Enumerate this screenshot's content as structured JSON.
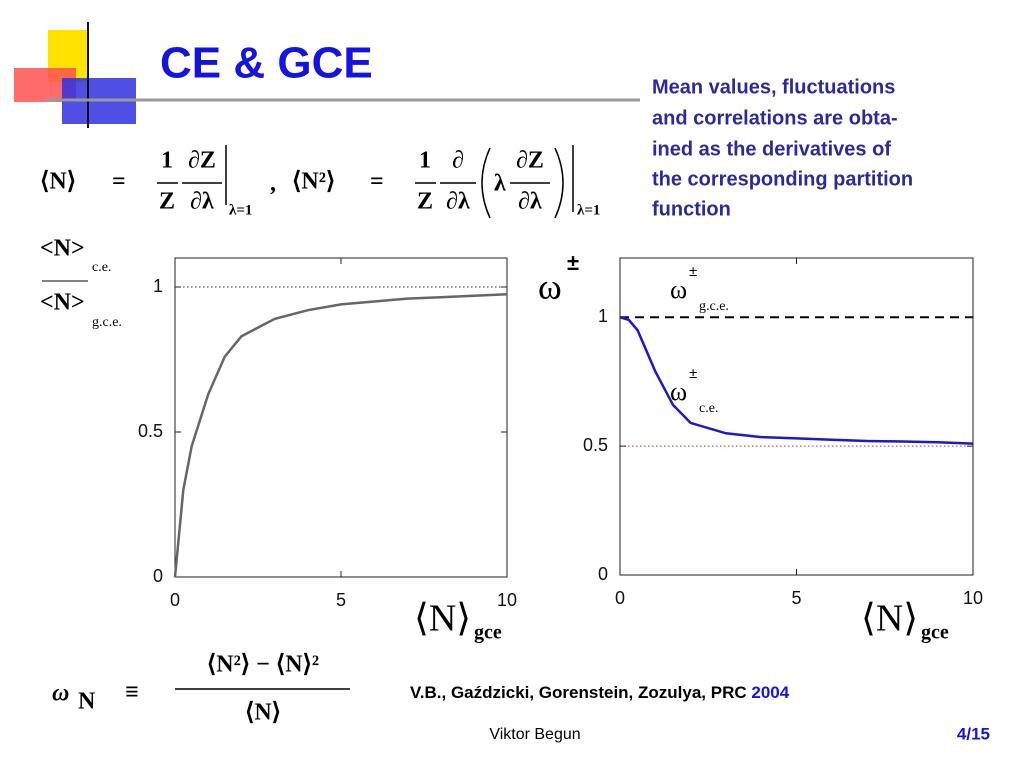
{
  "title": "CE & GCE",
  "description": [
    "Mean values, fluctuations",
    "and correlations are obta-",
    "ined  as the derivatives of",
    "the corresponding partition",
    "function"
  ],
  "formula_top": [
    "⟨N⟩",
    "=",
    "1",
    "Z",
    "∂Z",
    "∂λ",
    "λ=1",
    ",",
    "⟨N²⟩",
    "=",
    "1",
    "Z",
    "∂",
    "∂λ",
    "λ",
    "∂Z",
    "∂λ",
    "λ=1"
  ],
  "formula_bottom": [
    "ω",
    "N",
    "≡",
    "⟨N²⟩ − ⟨N⟩²",
    "⟨N⟩"
  ],
  "reference": {
    "authors": "V.B., Gaździcki, Gorenstein, Zozulya, PRC",
    "year": "2004"
  },
  "footer": {
    "author": "Viktor Begun",
    "page": "4/15"
  },
  "chart_data": [
    {
      "type": "line",
      "ylabel_numerator": "<N>",
      "ylabel_numerator_sub": "c.e.",
      "ylabel_denominator": "<N>",
      "ylabel_denominator_sub": "g.c.e.",
      "xlabel": "⟨N⟩",
      "xlabel_sub": "gce",
      "x": [
        0,
        0.25,
        0.5,
        1,
        1.5,
        2,
        3,
        4,
        5,
        6,
        7,
        8,
        9,
        10
      ],
      "values": [
        0,
        0.3,
        0.45,
        0.63,
        0.76,
        0.83,
        0.89,
        0.92,
        0.94,
        0.95,
        0.96,
        0.965,
        0.97,
        0.975
      ],
      "color": "#666666",
      "xlim": [
        0,
        10
      ],
      "ylim": [
        0,
        1.1
      ],
      "xticks": [
        0,
        5,
        10
      ],
      "yticks": [
        0,
        0.5,
        1
      ],
      "hlines": [
        {
          "value": 1,
          "style": "dotted",
          "color": "#333333"
        }
      ]
    },
    {
      "type": "line",
      "ylabel": "ω",
      "ylabel_sup": "±",
      "xlabel": "⟨N⟩",
      "xlabel_sub": "gce",
      "annotations": [
        {
          "text": "ω",
          "sup": "±",
          "sub": "g.c.e."
        },
        {
          "text": "ω",
          "sup": "±",
          "sub": "c.e."
        }
      ],
      "x": [
        0,
        0.25,
        0.5,
        1,
        1.5,
        2,
        3,
        4,
        5,
        6,
        7,
        8,
        9,
        10
      ],
      "values": [
        1,
        0.99,
        0.95,
        0.79,
        0.66,
        0.59,
        0.55,
        0.535,
        0.53,
        0.525,
        0.52,
        0.518,
        0.515,
        0.51
      ],
      "color": "#1a1acc",
      "xlim": [
        0,
        10
      ],
      "ylim": [
        0,
        1.23
      ],
      "xticks": [
        0,
        5,
        10
      ],
      "yticks": [
        0,
        0.5,
        1
      ],
      "hlines": [
        {
          "value": 1,
          "style": "dashed",
          "color": "#000000"
        },
        {
          "value": 0.5,
          "style": "dotted",
          "color": "#e03030"
        }
      ]
    }
  ]
}
